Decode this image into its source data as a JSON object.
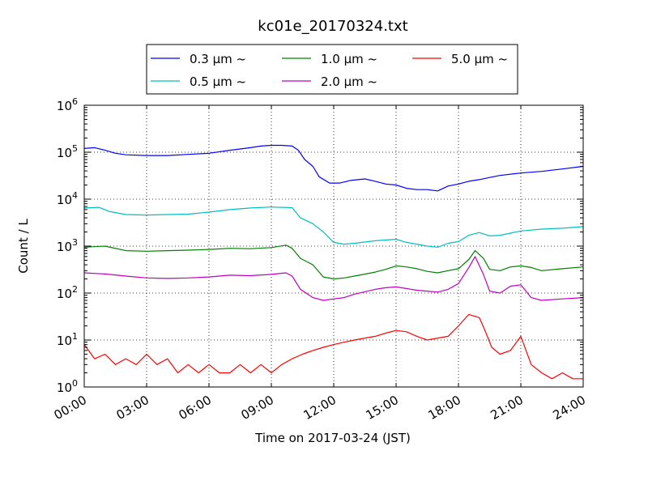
{
  "chart_data": {
    "type": "line",
    "title": "kc01e_20170324.txt",
    "xlabel": "Time on 2017-03-24 (JST)",
    "ylabel": "Count / L",
    "yscale": "log",
    "ylim": [
      1,
      1000000
    ],
    "xlim": [
      0,
      24
    ],
    "x_ticks": [
      0,
      3,
      6,
      9,
      12,
      15,
      18,
      21,
      24
    ],
    "x_tick_labels": [
      "00:00",
      "03:00",
      "06:00",
      "09:00",
      "12:00",
      "15:00",
      "18:00",
      "21:00",
      "24:00"
    ],
    "y_tick_labels": [
      {
        "base": "10",
        "exp": "0",
        "value": 1
      },
      {
        "base": "10",
        "exp": "1",
        "value": 10
      },
      {
        "base": "10",
        "exp": "2",
        "value": 100
      },
      {
        "base": "10",
        "exp": "3",
        "value": 1000
      },
      {
        "base": "10",
        "exp": "4",
        "value": 10000
      },
      {
        "base": "10",
        "exp": "5",
        "value": 100000
      },
      {
        "base": "10",
        "exp": "6",
        "value": 1000000
      }
    ],
    "grid": true,
    "legend_position": "top",
    "series": [
      {
        "name": "0.3 μm ~",
        "color": "#0000ff",
        "points": [
          [
            0,
            120000
          ],
          [
            0.5,
            125000
          ],
          [
            1,
            110000
          ],
          [
            1.5,
            95000
          ],
          [
            2,
            88000
          ],
          [
            3,
            85000
          ],
          [
            4,
            85000
          ],
          [
            5,
            90000
          ],
          [
            6,
            95000
          ],
          [
            7,
            110000
          ],
          [
            8,
            125000
          ],
          [
            8.5,
            135000
          ],
          [
            9,
            140000
          ],
          [
            9.5,
            140000
          ],
          [
            10,
            135000
          ],
          [
            10.3,
            110000
          ],
          [
            10.6,
            70000
          ],
          [
            11,
            50000
          ],
          [
            11.3,
            30000
          ],
          [
            11.8,
            22000
          ],
          [
            12.3,
            22000
          ],
          [
            12.8,
            25000
          ],
          [
            13.5,
            27000
          ],
          [
            14,
            24000
          ],
          [
            14.5,
            21000
          ],
          [
            15,
            20000
          ],
          [
            15.5,
            17000
          ],
          [
            16,
            16000
          ],
          [
            16.5,
            16000
          ],
          [
            17,
            15000
          ],
          [
            17.5,
            19000
          ],
          [
            18,
            21000
          ],
          [
            18.5,
            24000
          ],
          [
            19,
            26000
          ],
          [
            19.5,
            29000
          ],
          [
            20,
            32000
          ],
          [
            21,
            36000
          ],
          [
            22,
            39000
          ],
          [
            23,
            44000
          ],
          [
            24,
            50000
          ]
        ]
      },
      {
        "name": "0.5 μm ~",
        "color": "#00bfbf",
        "points": [
          [
            0,
            6500
          ],
          [
            0.7,
            6700
          ],
          [
            1.2,
            5500
          ],
          [
            2,
            4700
          ],
          [
            3,
            4600
          ],
          [
            4,
            4700
          ],
          [
            5,
            4800
          ],
          [
            6,
            5300
          ],
          [
            7,
            6000
          ],
          [
            8,
            6500
          ],
          [
            9,
            6800
          ],
          [
            10,
            6600
          ],
          [
            10.4,
            4000
          ],
          [
            11,
            3000
          ],
          [
            11.5,
            2000
          ],
          [
            12,
            1200
          ],
          [
            12.5,
            1100
          ],
          [
            13,
            1150
          ],
          [
            14,
            1300
          ],
          [
            15,
            1400
          ],
          [
            15.5,
            1200
          ],
          [
            16,
            1100
          ],
          [
            16.5,
            1000
          ],
          [
            17,
            950
          ],
          [
            17.5,
            1150
          ],
          [
            18,
            1250
          ],
          [
            18.5,
            1700
          ],
          [
            19,
            1950
          ],
          [
            19.5,
            1650
          ],
          [
            20,
            1700
          ],
          [
            21,
            2100
          ],
          [
            22,
            2300
          ],
          [
            23,
            2400
          ],
          [
            24,
            2600
          ]
        ]
      },
      {
        "name": "1.0 μm ~",
        "color": "#008000",
        "points": [
          [
            0,
            950
          ],
          [
            1,
            1000
          ],
          [
            2,
            800
          ],
          [
            3,
            780
          ],
          [
            4,
            800
          ],
          [
            5,
            820
          ],
          [
            6,
            850
          ],
          [
            7,
            900
          ],
          [
            8,
            880
          ],
          [
            9,
            930
          ],
          [
            9.7,
            1050
          ],
          [
            10,
            900
          ],
          [
            10.4,
            550
          ],
          [
            11,
            400
          ],
          [
            11.5,
            220
          ],
          [
            12,
            200
          ],
          [
            12.5,
            210
          ],
          [
            13,
            230
          ],
          [
            14,
            280
          ],
          [
            14.5,
            320
          ],
          [
            15,
            380
          ],
          [
            15.5,
            360
          ],
          [
            16,
            330
          ],
          [
            16.5,
            290
          ],
          [
            17,
            270
          ],
          [
            17.5,
            300
          ],
          [
            18,
            330
          ],
          [
            18.5,
            520
          ],
          [
            18.8,
            800
          ],
          [
            19.2,
            550
          ],
          [
            19.5,
            320
          ],
          [
            20,
            300
          ],
          [
            20.5,
            360
          ],
          [
            21,
            380
          ],
          [
            21.5,
            350
          ],
          [
            22,
            300
          ],
          [
            23,
            330
          ],
          [
            24,
            360
          ]
        ]
      },
      {
        "name": "2.0 μm ~",
        "color": "#bf00bf",
        "points": [
          [
            0,
            270
          ],
          [
            1,
            255
          ],
          [
            2,
            230
          ],
          [
            3,
            210
          ],
          [
            4,
            205
          ],
          [
            5,
            210
          ],
          [
            6,
            220
          ],
          [
            7,
            240
          ],
          [
            8,
            235
          ],
          [
            9,
            250
          ],
          [
            9.7,
            270
          ],
          [
            10,
            230
          ],
          [
            10.4,
            120
          ],
          [
            11,
            80
          ],
          [
            11.5,
            70
          ],
          [
            12,
            75
          ],
          [
            12.5,
            80
          ],
          [
            13,
            95
          ],
          [
            14,
            120
          ],
          [
            14.5,
            130
          ],
          [
            15,
            135
          ],
          [
            15.5,
            125
          ],
          [
            16,
            115
          ],
          [
            16.5,
            110
          ],
          [
            17,
            105
          ],
          [
            17.5,
            120
          ],
          [
            18,
            160
          ],
          [
            18.5,
            350
          ],
          [
            18.8,
            600
          ],
          [
            19.2,
            250
          ],
          [
            19.5,
            110
          ],
          [
            20,
            100
          ],
          [
            20.5,
            140
          ],
          [
            21,
            150
          ],
          [
            21.5,
            80
          ],
          [
            22,
            70
          ],
          [
            23,
            75
          ],
          [
            24,
            80
          ]
        ]
      },
      {
        "name": "5.0 μm ~",
        "color": "#ff0000",
        "points": [
          [
            0,
            8
          ],
          [
            0.5,
            4
          ],
          [
            1,
            5
          ],
          [
            1.5,
            3
          ],
          [
            2,
            4
          ],
          [
            2.5,
            3
          ],
          [
            3,
            5
          ],
          [
            3.5,
            3
          ],
          [
            4,
            4
          ],
          [
            4.5,
            2
          ],
          [
            5,
            3
          ],
          [
            5.5,
            2
          ],
          [
            6,
            3
          ],
          [
            6.5,
            2
          ],
          [
            7,
            2
          ],
          [
            7.5,
            3
          ],
          [
            8,
            2
          ],
          [
            8.5,
            3
          ],
          [
            9,
            2
          ],
          [
            9.5,
            3
          ],
          [
            10,
            4
          ],
          [
            10.5,
            5
          ],
          [
            11,
            6
          ],
          [
            11.5,
            7
          ],
          [
            12,
            8
          ],
          [
            12.5,
            9
          ],
          [
            13,
            10
          ],
          [
            13.5,
            11
          ],
          [
            14,
            12
          ],
          [
            14.5,
            14
          ],
          [
            15,
            16
          ],
          [
            15.5,
            15
          ],
          [
            16,
            12
          ],
          [
            16.5,
            10
          ],
          [
            17,
            11
          ],
          [
            17.5,
            12
          ],
          [
            18,
            20
          ],
          [
            18.5,
            35
          ],
          [
            19,
            30
          ],
          [
            19.3,
            15
          ],
          [
            19.6,
            7
          ],
          [
            20,
            5
          ],
          [
            20.5,
            6
          ],
          [
            21,
            12
          ],
          [
            21.5,
            3
          ],
          [
            22,
            2
          ],
          [
            22.5,
            1.5
          ],
          [
            23,
            2
          ],
          [
            23.5,
            1.5
          ],
          [
            24,
            1.5
          ]
        ]
      }
    ]
  }
}
